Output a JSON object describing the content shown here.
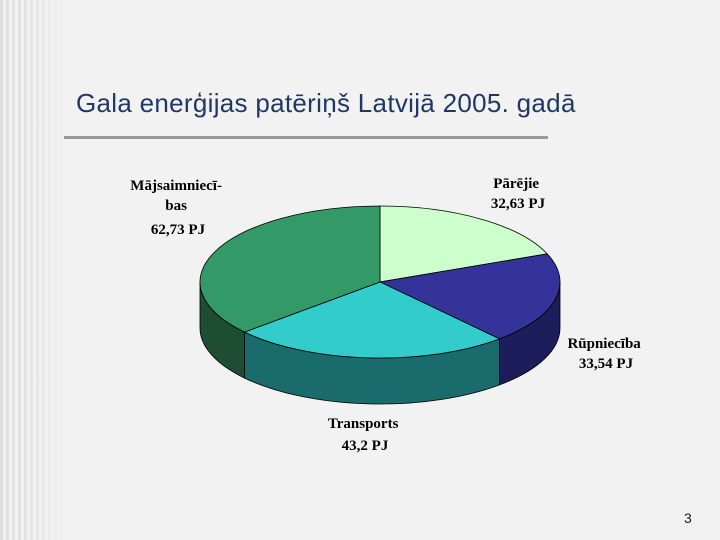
{
  "slide": {
    "title": "Gala enerģijas patēriņš Latvijā 2005. gadā",
    "page_number": "3"
  },
  "chart_data": {
    "type": "pie",
    "style": "3d",
    "title": "",
    "unit": "PJ",
    "categories": [
      "Pārējie",
      "Rūpniecība",
      "Transports",
      "Mājsaimniecības"
    ],
    "values": [
      32.63,
      33.54,
      43.2,
      62.73
    ],
    "labels": [
      [
        "Pārējie",
        "32,63 PJ"
      ],
      [
        "Rūpniecība",
        "33,54 PJ"
      ],
      [
        "Transports",
        "43,2 PJ"
      ],
      [
        "Mājsaimniecī-",
        "bas",
        "62,73 PJ"
      ]
    ],
    "colors": [
      "#ccffcc",
      "#333399",
      "#33cccc",
      "#339966"
    ],
    "side_colors": [
      "#8fb38f",
      "#1d1d5c",
      "#1a6b6b",
      "#1d4d33"
    ]
  }
}
